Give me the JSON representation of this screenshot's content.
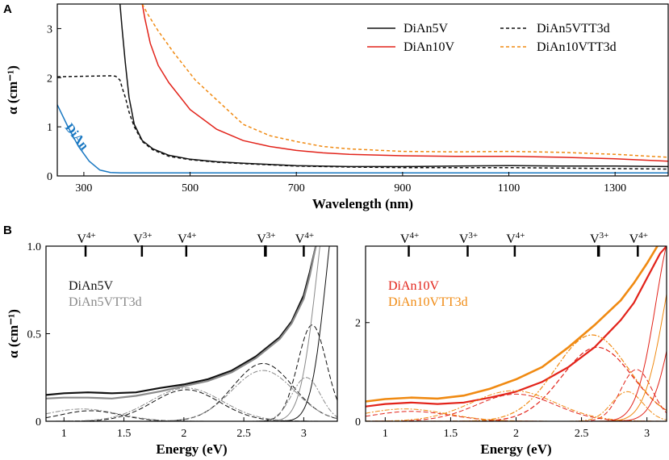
{
  "colors": {
    "black": "#111111",
    "gray": "#8a8a8a",
    "red": "#e2231a",
    "orange": "#f08a12",
    "blue": "#1a78c2"
  },
  "chart_data": [
    {
      "panel": "A",
      "type": "line",
      "xlabel": "Wavelength (nm)",
      "ylabel": "α (cm⁻¹)",
      "xlim": [
        250,
        1400
      ],
      "ylim": [
        0,
        3.5
      ],
      "xticks": [
        300,
        500,
        700,
        900,
        1100,
        1300
      ],
      "yticks": [
        0,
        1,
        2,
        3
      ],
      "series": [
        {
          "name": "DiAn5V",
          "color": "black",
          "dash": "",
          "x": [
            368,
            372,
            378,
            385,
            395,
            410,
            430,
            460,
            500,
            550,
            600,
            700,
            800,
            900,
            1000,
            1100,
            1200,
            1300,
            1400
          ],
          "y": [
            3.5,
            3.0,
            2.3,
            1.6,
            1.05,
            0.72,
            0.55,
            0.42,
            0.34,
            0.29,
            0.26,
            0.21,
            0.19,
            0.19,
            0.2,
            0.21,
            0.2,
            0.2,
            0.19
          ]
        },
        {
          "name": "DiAn5VTT3d",
          "color": "black",
          "dash": "4,3",
          "x": [
            250,
            350,
            360,
            368,
            372,
            378,
            385,
            395,
            410,
            430,
            460,
            500,
            550,
            600,
            700,
            800,
            900,
            1000,
            1100,
            1200,
            1300,
            1400
          ],
          "y": [
            2.02,
            2.04,
            2.03,
            1.95,
            1.8,
            1.6,
            1.3,
            1.0,
            0.7,
            0.53,
            0.4,
            0.33,
            0.28,
            0.25,
            0.2,
            0.18,
            0.17,
            0.17,
            0.17,
            0.16,
            0.15,
            0.14
          ]
        },
        {
          "name": "DiAn10V",
          "color": "red",
          "dash": "",
          "x": [
            410,
            415,
            425,
            440,
            460,
            500,
            550,
            600,
            650,
            700,
            750,
            800,
            900,
            1000,
            1100,
            1200,
            1300,
            1400
          ],
          "y": [
            3.5,
            3.2,
            2.7,
            2.25,
            1.9,
            1.35,
            0.95,
            0.72,
            0.6,
            0.52,
            0.47,
            0.44,
            0.41,
            0.4,
            0.4,
            0.38,
            0.35,
            0.3
          ]
        },
        {
          "name": "DiAn10VTT3d",
          "color": "orange",
          "dash": "4,3",
          "x": [
            410,
            420,
            440,
            470,
            510,
            560,
            600,
            650,
            700,
            750,
            800,
            900,
            1000,
            1100,
            1200,
            1300,
            1400
          ],
          "y": [
            3.5,
            3.3,
            2.95,
            2.5,
            1.95,
            1.45,
            1.05,
            0.82,
            0.7,
            0.6,
            0.55,
            0.5,
            0.49,
            0.5,
            0.48,
            0.44,
            0.38
          ]
        },
        {
          "name": "DiAn",
          "color": "blue",
          "dash": "",
          "x": [
            250,
            270,
            290,
            310,
            330,
            350,
            370,
            400,
            500,
            700,
            900,
            1100,
            1300,
            1400
          ],
          "y": [
            1.45,
            1.0,
            0.6,
            0.3,
            0.12,
            0.07,
            0.06,
            0.06,
            0.06,
            0.06,
            0.06,
            0.06,
            0.06,
            0.06
          ]
        }
      ],
      "legend": [
        {
          "label": "DiAn5V",
          "series": "DiAn5V"
        },
        {
          "label": "DiAn10V",
          "series": "DiAn10V"
        },
        {
          "label": "DiAn5VTT3d",
          "series": "DiAn5VTT3d"
        },
        {
          "label": "DiAn10VTT3d",
          "series": "DiAn10VTT3d"
        }
      ],
      "annotation": "DiAn"
    },
    {
      "panel": "B",
      "type": "line",
      "xlabel": "Energy (eV)",
      "ylabel": "α (cm⁻¹)",
      "xlim": [
        0.85,
        3.28
      ],
      "ylim": [
        0,
        1.0
      ],
      "xticks": [
        1.0,
        1.5,
        2.0,
        2.5,
        3.0
      ],
      "yticks": [
        0,
        0.5,
        1.0
      ],
      "ytick_labels": [
        "0",
        "0.5",
        "1.0"
      ],
      "vlabels": [
        {
          "label": "V4+",
          "x": 1.18
        },
        {
          "label": "V3+",
          "x": 1.65
        },
        {
          "label": "V4+",
          "x": 2.02
        },
        {
          "label": "V3+",
          "x": 2.68
        },
        {
          "label": "V4+",
          "x": 3.0
        }
      ],
      "series": [
        {
          "name": "DiAn5V",
          "color": "black",
          "width": 2.2,
          "dash": "",
          "x": [
            0.85,
            1.0,
            1.2,
            1.4,
            1.6,
            1.8,
            2.0,
            2.2,
            2.4,
            2.6,
            2.8,
            2.9,
            3.0,
            3.05,
            3.1
          ],
          "y": [
            0.15,
            0.16,
            0.165,
            0.16,
            0.165,
            0.19,
            0.21,
            0.24,
            0.29,
            0.37,
            0.48,
            0.57,
            0.72,
            0.85,
            1.0
          ]
        },
        {
          "name": "DiAn5VTT3d",
          "color": "gray",
          "width": 2.2,
          "dash": "",
          "x": [
            0.85,
            1.0,
            1.2,
            1.4,
            1.6,
            1.8,
            2.0,
            2.2,
            2.4,
            2.6,
            2.8,
            2.9,
            3.0,
            3.05,
            3.1
          ],
          "y": [
            0.13,
            0.135,
            0.135,
            0.13,
            0.145,
            0.17,
            0.2,
            0.23,
            0.28,
            0.36,
            0.47,
            0.56,
            0.7,
            0.83,
            1.0
          ]
        },
        {
          "name": "DiAn5V-g1",
          "color": "black",
          "width": 1,
          "dash": "6,3",
          "gauss": [
            0.06,
            1.22,
            0.25
          ]
        },
        {
          "name": "DiAn5V-g2",
          "color": "black",
          "width": 1,
          "dash": "6,3",
          "gauss": [
            0.18,
            2.02,
            0.28
          ]
        },
        {
          "name": "DiAn5V-g3",
          "color": "black",
          "width": 1,
          "dash": "6,3",
          "gauss": [
            0.33,
            2.66,
            0.25
          ]
        },
        {
          "name": "DiAn5V-g4",
          "color": "black",
          "width": 1,
          "dash": "6,3",
          "gauss": [
            0.55,
            3.07,
            0.12
          ]
        },
        {
          "name": "DiAn5VTT3d-g1",
          "color": "gray",
          "width": 1,
          "dash": "6,2,2,2",
          "gauss": [
            0.07,
            1.15,
            0.3
          ]
        },
        {
          "name": "DiAn5VTT3d-g2",
          "color": "gray",
          "width": 1,
          "dash": "6,2,2,2",
          "gauss": [
            0.19,
            2.02,
            0.3
          ]
        },
        {
          "name": "DiAn5VTT3d-g3",
          "color": "gray",
          "width": 1,
          "dash": "6,2,2,2",
          "gauss": [
            0.29,
            2.66,
            0.26
          ]
        },
        {
          "name": "DiAn5VTT3d-g4",
          "color": "gray",
          "width": 1,
          "dash": "6,2,2,2",
          "gauss": [
            0.25,
            3.02,
            0.12
          ]
        },
        {
          "name": "DiAn5V-edge-a",
          "color": "gray",
          "width": 1,
          "dash": "",
          "gauss": [
            1.4,
            3.25,
            0.14
          ]
        },
        {
          "name": "DiAn5V-edge-b",
          "color": "black",
          "width": 1,
          "dash": "",
          "gauss": [
            1.4,
            3.32,
            0.13
          ]
        }
      ],
      "legend": [
        {
          "label": "DiAn5V",
          "color": "black"
        },
        {
          "label": "DiAn5VTT3d",
          "color": "gray"
        }
      ]
    },
    {
      "panel": "B-right",
      "type": "line",
      "xlabel": "Energy (eV)",
      "ylabel": "",
      "xlim": [
        0.85,
        3.15
      ],
      "ylim": [
        0,
        3.55
      ],
      "xticks": [
        1.0,
        1.5,
        2.0,
        2.5,
        3.0
      ],
      "yticks": [
        0,
        2
      ],
      "ytick_labels": [
        "0",
        "2"
      ],
      "vlabels": [
        {
          "label": "V4+",
          "x": 1.18
        },
        {
          "label": "V3+",
          "x": 1.63
        },
        {
          "label": "V4+",
          "x": 1.99
        },
        {
          "label": "V3+",
          "x": 2.63
        },
        {
          "label": "V4+",
          "x": 2.93
        }
      ],
      "series": [
        {
          "name": "DiAn10V",
          "color": "red",
          "width": 2.2,
          "dash": "",
          "x": [
            0.85,
            1.0,
            1.2,
            1.4,
            1.6,
            1.8,
            2.0,
            2.2,
            2.4,
            2.6,
            2.8,
            2.9,
            3.0,
            3.1,
            3.15
          ],
          "y": [
            0.3,
            0.35,
            0.38,
            0.35,
            0.38,
            0.48,
            0.6,
            0.8,
            1.1,
            1.5,
            2.05,
            2.4,
            2.9,
            3.4,
            3.55
          ]
        },
        {
          "name": "DiAn10VTT3d",
          "color": "orange",
          "width": 2.6,
          "dash": "",
          "x": [
            0.85,
            1.0,
            1.2,
            1.4,
            1.6,
            1.8,
            2.0,
            2.2,
            2.4,
            2.6,
            2.8,
            2.9,
            3.0,
            3.08
          ],
          "y": [
            0.4,
            0.45,
            0.48,
            0.46,
            0.52,
            0.66,
            0.85,
            1.1,
            1.5,
            1.95,
            2.45,
            2.8,
            3.2,
            3.55
          ]
        },
        {
          "name": "DiAn10V-g1",
          "color": "red",
          "width": 1,
          "dash": "6,3",
          "gauss": [
            0.2,
            1.2,
            0.3
          ]
        },
        {
          "name": "DiAn10V-g2",
          "color": "red",
          "width": 1,
          "dash": "6,3",
          "gauss": [
            0.55,
            2.0,
            0.3
          ]
        },
        {
          "name": "DiAn10V-g3",
          "color": "red",
          "width": 1.2,
          "dash": "6,3",
          "gauss": [
            1.5,
            2.62,
            0.27
          ]
        },
        {
          "name": "DiAn10V-g4",
          "color": "red",
          "width": 1,
          "dash": "6,3",
          "gauss": [
            1.05,
            2.92,
            0.12
          ]
        },
        {
          "name": "DiAn10VTT3d-g1",
          "color": "orange",
          "width": 1,
          "dash": "6,2,2,2",
          "gauss": [
            0.25,
            1.15,
            0.32
          ]
        },
        {
          "name": "DiAn10VTT3d-g2",
          "color": "orange",
          "width": 1,
          "dash": "6,2,2,2",
          "gauss": [
            0.62,
            1.98,
            0.32
          ]
        },
        {
          "name": "DiAn10VTT3d-g3",
          "color": "orange",
          "width": 1.2,
          "dash": "6,2,2,2",
          "gauss": [
            1.75,
            2.58,
            0.28
          ]
        },
        {
          "name": "DiAn10VTT3d-g4",
          "color": "orange",
          "width": 1,
          "dash": "6,2,2,2",
          "gauss": [
            0.6,
            2.85,
            0.12
          ]
        },
        {
          "name": "DiAn10V-edge-a",
          "color": "red",
          "width": 1,
          "dash": "",
          "gauss": [
            4.0,
            3.22,
            0.15
          ]
        },
        {
          "name": "DiAn10V-edge-b",
          "color": "orange",
          "width": 1,
          "dash": "",
          "gauss": [
            4.0,
            3.3,
            0.16
          ]
        },
        {
          "name": "DiAn10V-edge-c",
          "color": "red",
          "width": 1,
          "dash": "",
          "gauss": [
            4.0,
            3.38,
            0.16
          ]
        }
      ],
      "legend": [
        {
          "label": "DiAn10V",
          "color": "red"
        },
        {
          "label": "DiAn10VTT3d",
          "color": "orange"
        }
      ]
    }
  ],
  "labels": {
    "panel_a": "A",
    "panel_b": "B"
  }
}
